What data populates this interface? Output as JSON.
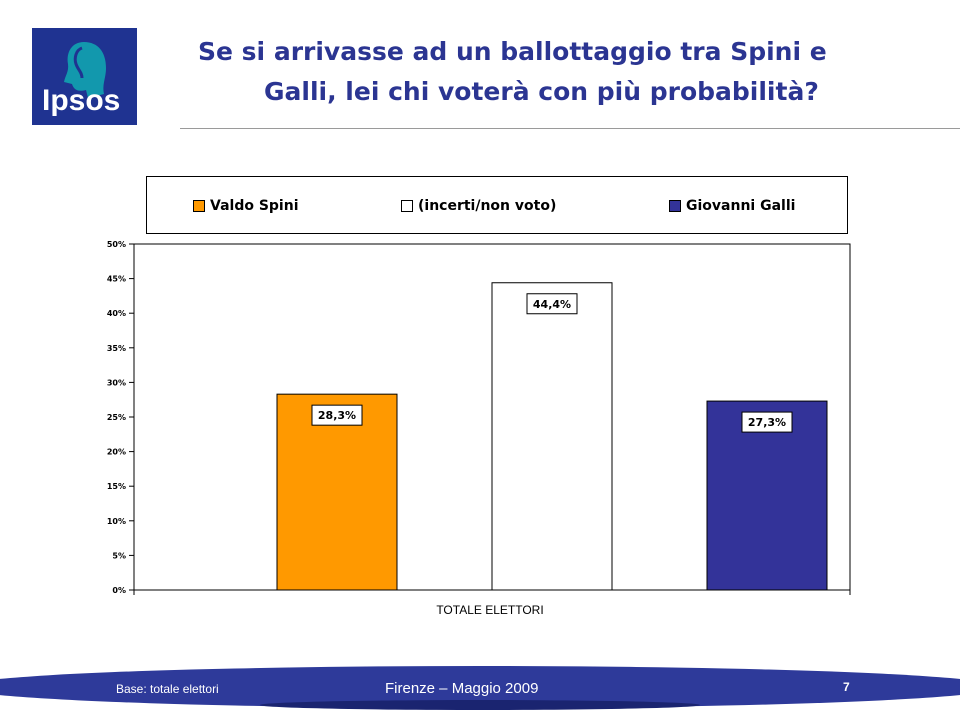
{
  "logo": {
    "text": "Ipsos",
    "color": "#1f3391",
    "accent": "#11a3b0"
  },
  "title": {
    "line1": "Se si arrivasse ad un ballottaggio tra Spini e",
    "line2": "Galli, lei chi voterà con più probabilità?"
  },
  "chart_data": {
    "type": "bar",
    "categories": [
      "TOTALE ELETTORI"
    ],
    "xlabel": "TOTALE ELETTORI",
    "ylabel": "",
    "ylim": [
      0,
      50
    ],
    "yticks": [
      0,
      5,
      10,
      15,
      20,
      25,
      30,
      35,
      40,
      45,
      50
    ],
    "ytick_labels": [
      "0%",
      "5%",
      "10%",
      "15%",
      "20%",
      "25%",
      "30%",
      "35%",
      "40%",
      "45%",
      "50%"
    ],
    "grid": false,
    "legend_position": "top",
    "series": [
      {
        "name": "Valdo Spini",
        "values": [
          28.3
        ],
        "label": "28,3%",
        "color": "#ff9900"
      },
      {
        "name": "(incerti/non voto)",
        "values": [
          44.4
        ],
        "label": "44,4%",
        "color": "#ffffff"
      },
      {
        "name": "Giovanni Galli",
        "values": [
          27.3
        ],
        "label": "27,3%",
        "color": "#333399"
      }
    ]
  },
  "footer": {
    "base": "Base: totale elettori",
    "place_date": "Firenze – Maggio 2009",
    "page_number": "7"
  }
}
